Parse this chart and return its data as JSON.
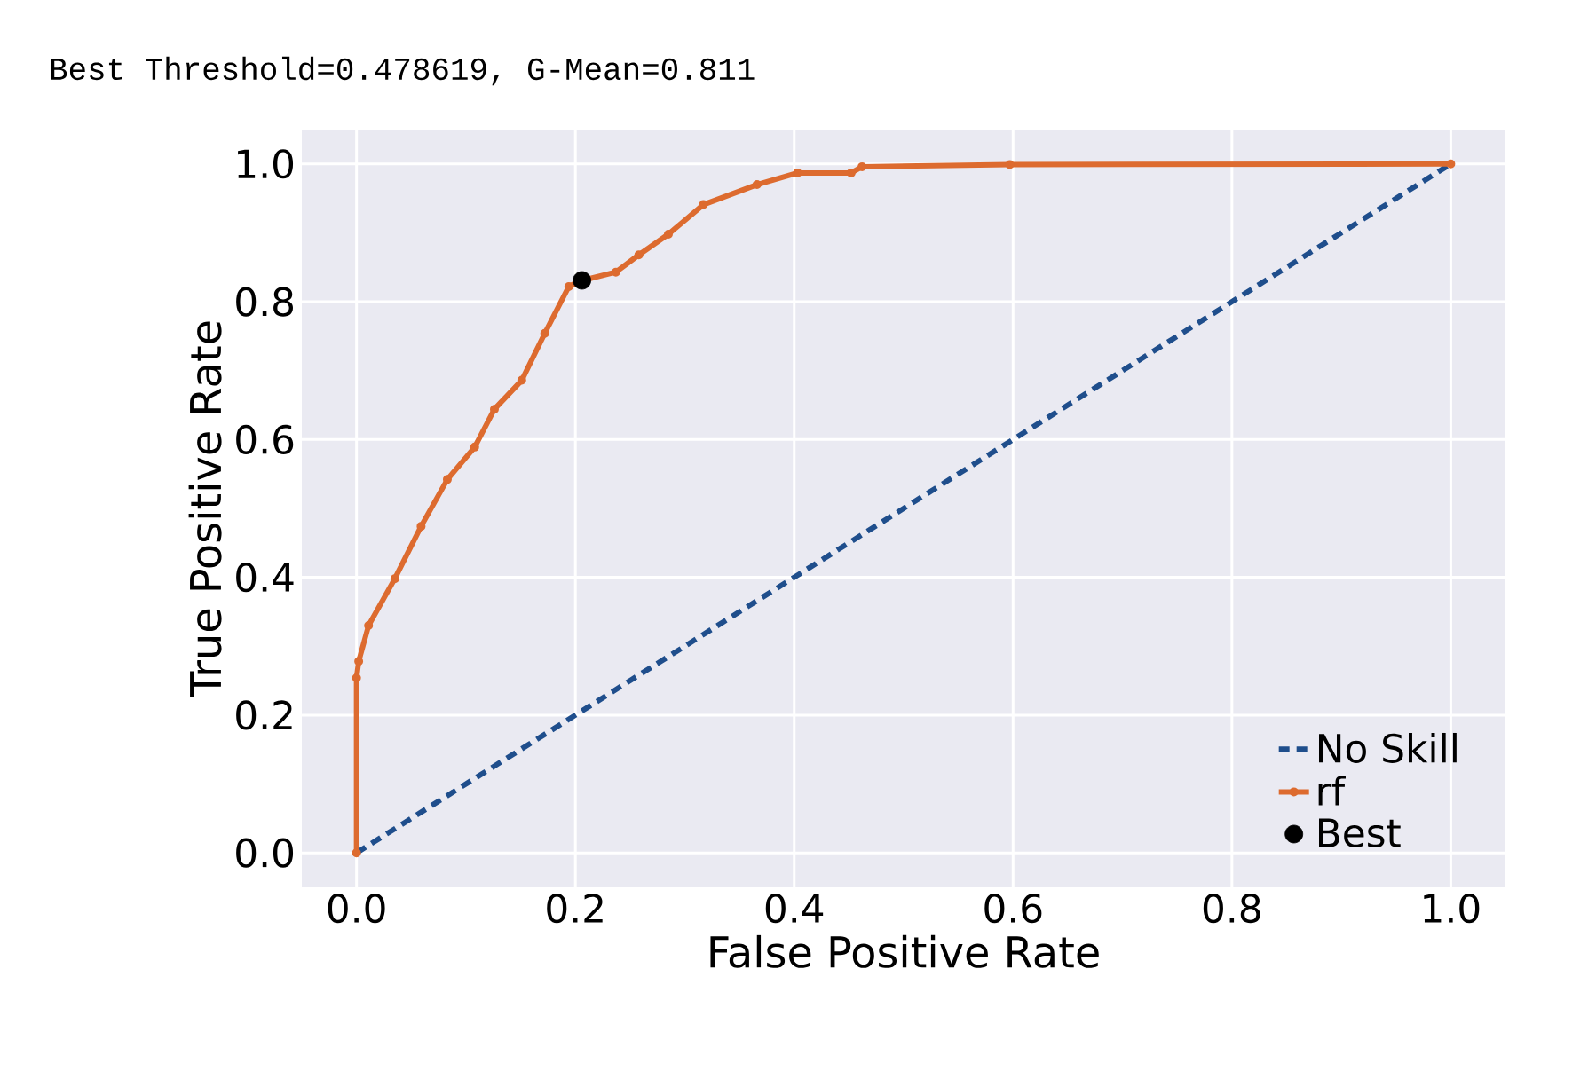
{
  "chart_data": {
    "type": "line",
    "title": "Best Threshold=0.478619, G-Mean=0.811",
    "xlabel": "False Positive Rate",
    "ylabel": "True Positive Rate",
    "xlim": [
      -0.05,
      1.05
    ],
    "ylim": [
      -0.05,
      1.05
    ],
    "xticks": [
      {
        "value": 0,
        "label": "0.0"
      },
      {
        "value": 0.2,
        "label": "0.2"
      },
      {
        "value": 0.4,
        "label": "0.4"
      },
      {
        "value": 0.6,
        "label": "0.6"
      },
      {
        "value": 0.8,
        "label": "0.8"
      },
      {
        "value": 1,
        "label": "1.0"
      }
    ],
    "yticks": [
      {
        "value": 0,
        "label": "0.0"
      },
      {
        "value": 0.2,
        "label": "0.2"
      },
      {
        "value": 0.4,
        "label": "0.4"
      },
      {
        "value": 0.6,
        "label": "0.6"
      },
      {
        "value": 0.8,
        "label": "0.8"
      },
      {
        "value": 1,
        "label": "1.0"
      }
    ],
    "grid": true,
    "legend": "bottom right",
    "series": [
      {
        "name": "No Skill",
        "line_style": "dashed",
        "marker": "none",
        "color": "#1f4e8c",
        "x": [
          0,
          1
        ],
        "values": [
          0,
          1
        ]
      },
      {
        "name": "rf",
        "line_style": "solid",
        "marker": "circle",
        "color": "#dd6b2f",
        "x": [
          0,
          0,
          0.002,
          0.011,
          0.035,
          0.059,
          0.083,
          0.108,
          0.126,
          0.151,
          0.172,
          0.194,
          0.204,
          0.237,
          0.258,
          0.285,
          0.317,
          0.366,
          0.403,
          0.452,
          0.462,
          0.597,
          1
        ],
        "values": [
          0,
          0.254,
          0.278,
          0.33,
          0.398,
          0.474,
          0.542,
          0.589,
          0.644,
          0.686,
          0.754,
          0.822,
          0.83,
          0.843,
          0.868,
          0.898,
          0.941,
          0.97,
          0.987,
          0.987,
          0.996,
          0.999,
          1
        ]
      },
      {
        "name": "Best",
        "type": "scatter",
        "marker": "circle",
        "color": "#000000",
        "x": [
          0.206
        ],
        "values": [
          0.831
        ]
      }
    ]
  }
}
